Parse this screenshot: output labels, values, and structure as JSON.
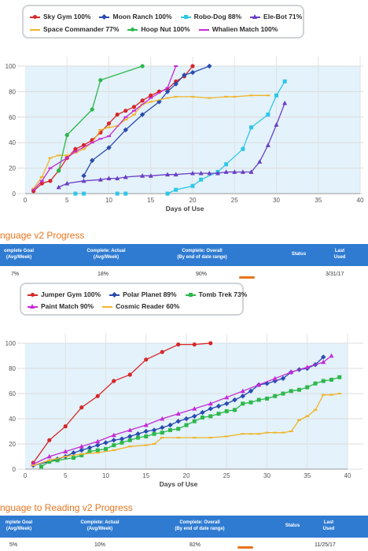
{
  "chart_data": [
    {
      "type": "line",
      "title": "",
      "xlabel": "Days of Use",
      "ylabel": "",
      "xlim": [
        0,
        40
      ],
      "ylim": [
        0,
        100
      ],
      "x_ticks": [
        0,
        5,
        10,
        15,
        20,
        25,
        30,
        35,
        40
      ],
      "y_ticks": [
        0,
        20,
        40,
        60,
        80,
        100
      ],
      "grid": true,
      "legend_position": "top",
      "legend_rows": [
        [
          0,
          1,
          2,
          3
        ],
        [
          4,
          5,
          6
        ]
      ],
      "series": [
        {
          "name": "Sky Gym 100%",
          "color": "#d62728",
          "marker": "circle",
          "points": [
            [
              1,
              2
            ],
            [
              2,
              8
            ],
            [
              3,
              10
            ],
            [
              4,
              18
            ],
            [
              5,
              28
            ],
            [
              6,
              35
            ],
            [
              7,
              38
            ],
            [
              8,
              42
            ],
            [
              9,
              48
            ],
            [
              10,
              55
            ],
            [
              11,
              62
            ],
            [
              12,
              65
            ],
            [
              13,
              68
            ],
            [
              14,
              73
            ],
            [
              15,
              77
            ],
            [
              16,
              80
            ],
            [
              17,
              82
            ],
            [
              18,
              88
            ],
            [
              19,
              92
            ],
            [
              20,
              100
            ]
          ]
        },
        {
          "name": "Moon Ranch 100%",
          "color": "#2a4bb0",
          "marker": "diamond",
          "points": [
            [
              7,
              14
            ],
            [
              8,
              26
            ],
            [
              10,
              36
            ],
            [
              12,
              50
            ],
            [
              14,
              62
            ],
            [
              16,
              72
            ],
            [
              17,
              80
            ],
            [
              18,
              86
            ],
            [
              19,
              93
            ],
            [
              20,
              95
            ],
            [
              22,
              100
            ]
          ]
        },
        {
          "name": "Robo-Dog 88%",
          "color": "#2ec7e8",
          "marker": "square",
          "points": [
            [
              6,
              0
            ],
            [
              7,
              0
            ],
            [
              11,
              0
            ],
            [
              12,
              0
            ],
            [
              17,
              0
            ],
            [
              18,
              3
            ],
            [
              20,
              6
            ],
            [
              21,
              11
            ],
            [
              23,
              17
            ],
            [
              24,
              23
            ],
            [
              26,
              35
            ],
            [
              27,
              52
            ],
            [
              29,
              62
            ],
            [
              30,
              77
            ],
            [
              31,
              88
            ]
          ]
        },
        {
          "name": "Ele-Bot 71%",
          "color": "#6a3fc4",
          "marker": "triangle",
          "points": [
            [
              4,
              5
            ],
            [
              5,
              8
            ],
            [
              7,
              10
            ],
            [
              9,
              11
            ],
            [
              10,
              12
            ],
            [
              11,
              12
            ],
            [
              12,
              13
            ],
            [
              14,
              14
            ],
            [
              15,
              14
            ],
            [
              17,
              15
            ],
            [
              18,
              15
            ],
            [
              20,
              16
            ],
            [
              21,
              16
            ],
            [
              22,
              16
            ],
            [
              23,
              16
            ],
            [
              24,
              17
            ],
            [
              25,
              17
            ],
            [
              26,
              17
            ],
            [
              27,
              17
            ],
            [
              28,
              25
            ],
            [
              29,
              38
            ],
            [
              30,
              54
            ],
            [
              31,
              71
            ]
          ]
        },
        {
          "name": "Space Commander 77%",
          "color": "#f0b429",
          "marker": "tick",
          "points": [
            [
              1,
              4
            ],
            [
              2,
              13
            ],
            [
              3,
              28
            ],
            [
              4,
              30
            ],
            [
              5,
              30
            ],
            [
              6,
              32
            ],
            [
              7,
              35
            ],
            [
              8,
              40
            ],
            [
              9,
              50
            ],
            [
              10,
              52
            ],
            [
              11,
              53
            ],
            [
              12,
              58
            ],
            [
              13,
              62
            ],
            [
              14,
              70
            ],
            [
              15,
              72
            ],
            [
              17,
              75
            ],
            [
              18,
              76
            ],
            [
              20,
              76
            ],
            [
              22,
              75
            ],
            [
              24,
              76
            ],
            [
              25,
              76
            ],
            [
              27,
              77
            ],
            [
              29,
              77
            ]
          ]
        },
        {
          "name": "Hoop Nut 100%",
          "color": "#2db84b",
          "marker": "circle",
          "points": [
            [
              4,
              18
            ],
            [
              5,
              46
            ],
            [
              8,
              66
            ],
            [
              9,
              89
            ],
            [
              14,
              100
            ]
          ]
        },
        {
          "name": "Whalien Match 100%",
          "color": "#c62ad6",
          "marker": "tick",
          "points": [
            [
              1,
              3
            ],
            [
              2,
              10
            ],
            [
              3,
              20
            ],
            [
              5,
              28
            ],
            [
              6,
              33
            ],
            [
              8,
              40
            ],
            [
              9,
              43
            ],
            [
              10,
              45
            ],
            [
              12,
              60
            ],
            [
              13,
              65
            ],
            [
              15,
              75
            ],
            [
              17,
              83
            ],
            [
              18,
              100
            ]
          ]
        }
      ]
    },
    {
      "type": "line",
      "title": "",
      "xlabel": "Days of Use",
      "ylabel": "",
      "xlim": [
        0,
        40
      ],
      "ylim": [
        0,
        100
      ],
      "x_ticks": [
        0,
        5,
        10,
        15,
        20,
        25,
        30,
        35,
        40
      ],
      "y_ticks": [
        0,
        20,
        40,
        60,
        80,
        100
      ],
      "grid": true,
      "legend_position": "top",
      "legend_rows": [
        [
          0,
          1,
          2
        ],
        [
          3,
          4
        ]
      ],
      "series": [
        {
          "name": "Jumper Gym 100%",
          "color": "#d62728",
          "marker": "circle",
          "points": [
            [
              1,
              5
            ],
            [
              3,
              23
            ],
            [
              5,
              34
            ],
            [
              7,
              49
            ],
            [
              9,
              58
            ],
            [
              11,
              70
            ],
            [
              13,
              75
            ],
            [
              15,
              87
            ],
            [
              17,
              93
            ],
            [
              19,
              99
            ],
            [
              21,
              99
            ],
            [
              23,
              100
            ]
          ]
        },
        {
          "name": "Polar Planet 89%",
          "color": "#2a4bb0",
          "marker": "diamond",
          "points": [
            [
              1,
              3
            ],
            [
              3,
              6
            ],
            [
              4,
              8
            ],
            [
              5,
              10
            ],
            [
              6,
              13
            ],
            [
              7,
              15
            ],
            [
              8,
              17
            ],
            [
              9,
              19
            ],
            [
              10,
              21
            ],
            [
              11,
              23
            ],
            [
              12,
              24
            ],
            [
              13,
              26
            ],
            [
              14,
              28
            ],
            [
              15,
              30
            ],
            [
              16,
              31
            ],
            [
              17,
              33
            ],
            [
              18,
              35
            ],
            [
              19,
              38
            ],
            [
              20,
              40
            ],
            [
              21,
              42
            ],
            [
              22,
              45
            ],
            [
              23,
              48
            ],
            [
              24,
              50
            ],
            [
              25,
              52
            ],
            [
              26,
              55
            ],
            [
              27,
              58
            ],
            [
              28,
              62
            ],
            [
              29,
              67
            ],
            [
              30,
              68
            ],
            [
              31,
              70
            ],
            [
              32,
              72
            ],
            [
              33,
              77
            ],
            [
              34,
              79
            ],
            [
              35,
              80
            ],
            [
              36,
              83
            ],
            [
              37,
              89
            ]
          ]
        },
        {
          "name": "Tomb Trek 73%",
          "color": "#2db84b",
          "marker": "square",
          "points": [
            [
              2,
              2
            ],
            [
              3,
              6
            ],
            [
              4,
              7
            ],
            [
              6,
              9
            ],
            [
              7,
              11
            ],
            [
              8,
              14
            ],
            [
              9,
              15
            ],
            [
              10,
              16
            ],
            [
              11,
              19
            ],
            [
              12,
              21
            ],
            [
              13,
              23
            ],
            [
              14,
              25
            ],
            [
              15,
              26
            ],
            [
              16,
              28
            ],
            [
              17,
              29
            ],
            [
              18,
              31
            ],
            [
              19,
              32
            ],
            [
              20,
              35
            ],
            [
              21,
              38
            ],
            [
              22,
              41
            ],
            [
              23,
              42
            ],
            [
              24,
              44
            ],
            [
              25,
              46
            ],
            [
              26,
              47
            ],
            [
              27,
              52
            ],
            [
              28,
              53
            ],
            [
              29,
              55
            ],
            [
              30,
              56
            ],
            [
              31,
              58
            ],
            [
              32,
              60
            ],
            [
              33,
              62
            ],
            [
              34,
              63
            ],
            [
              35,
              65
            ],
            [
              36,
              68
            ],
            [
              37,
              70
            ],
            [
              38,
              71
            ],
            [
              39,
              73
            ]
          ]
        },
        {
          "name": "Paint Match 90%",
          "color": "#c62ad6",
          "marker": "triangle",
          "points": [
            [
              1,
              4
            ],
            [
              3,
              10
            ],
            [
              5,
              14
            ],
            [
              7,
              18
            ],
            [
              9,
              22
            ],
            [
              11,
              27
            ],
            [
              13,
              31
            ],
            [
              15,
              35
            ],
            [
              17,
              40
            ],
            [
              19,
              44
            ],
            [
              21,
              48
            ],
            [
              23,
              52
            ],
            [
              25,
              57
            ],
            [
              27,
              62
            ],
            [
              29,
              67
            ],
            [
              31,
              72
            ],
            [
              33,
              77
            ],
            [
              35,
              81
            ],
            [
              37,
              85
            ],
            [
              38,
              90
            ]
          ]
        },
        {
          "name": "Cosmic Reader 60%",
          "color": "#f0b429",
          "marker": "tick",
          "points": [
            [
              1,
              3
            ],
            [
              3,
              7
            ],
            [
              5,
              10
            ],
            [
              7,
              12
            ],
            [
              9,
              13
            ],
            [
              11,
              15
            ],
            [
              13,
              18
            ],
            [
              15,
              19
            ],
            [
              16,
              20
            ],
            [
              17,
              25
            ],
            [
              19,
              25
            ],
            [
              21,
              25
            ],
            [
              23,
              25
            ],
            [
              25,
              26
            ],
            [
              27,
              28
            ],
            [
              28,
              28
            ],
            [
              29,
              28
            ],
            [
              30,
              29
            ],
            [
              31,
              29
            ],
            [
              32,
              29
            ],
            [
              33,
              30
            ],
            [
              34,
              39
            ],
            [
              35,
              42
            ],
            [
              36,
              47
            ],
            [
              37,
              59
            ],
            [
              38,
              59
            ],
            [
              39,
              60
            ]
          ]
        }
      ]
    }
  ],
  "progress_sections": [
    {
      "title": "nguage v2 Progress",
      "columns": [
        "omplete Goal\n(Avg/Week)",
        "Complete: Actual\n(Avg/Week)",
        "Complete: Overall\n(By end of date range)",
        "Status",
        "Last\nUsed"
      ],
      "row": {
        "goal": "7%",
        "actual": "18%",
        "overall": "90%",
        "last_used": "3/31/17"
      },
      "status_color": "#e8741d"
    },
    {
      "title": "nguage to Reading v2 Progress",
      "columns": [
        "mplete Goal\n(Avg/Week)",
        "Complete: Actual\n(Avg/Week)",
        "Complete: Overall\n(By end of date range)",
        "Status",
        "Last\nUsed"
      ],
      "row": {
        "goal": "5%",
        "actual": "10%",
        "overall": "82%",
        "last_used": "11/25/17"
      },
      "status_color": "#e8741d"
    }
  ]
}
